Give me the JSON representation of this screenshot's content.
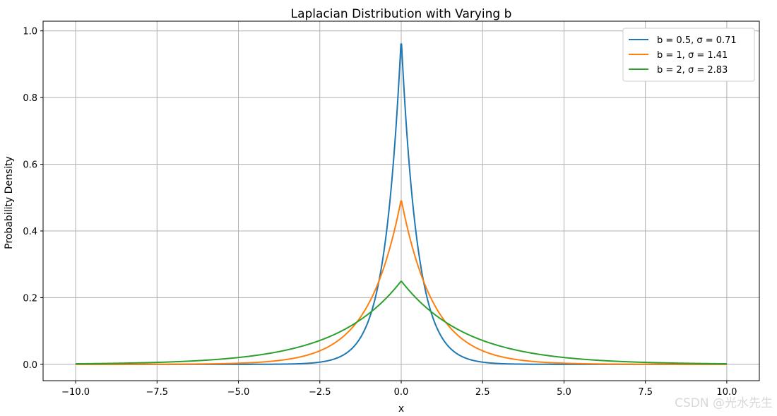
{
  "chart_data": {
    "type": "line",
    "title": "Laplacian Distribution with Varying b",
    "xlabel": "x",
    "ylabel": "Probability Density",
    "xlim": [
      -11.0,
      11.0
    ],
    "ylim": [
      -0.049,
      1.029
    ],
    "xticks": [
      -10.0,
      -7.5,
      -5.0,
      -2.5,
      0.0,
      2.5,
      5.0,
      7.5,
      10.0
    ],
    "xtick_labels": [
      "−10.0",
      "−7.5",
      "−5.0",
      "−2.5",
      "0.0",
      "2.5",
      "5.0",
      "7.5",
      "10.0"
    ],
    "yticks": [
      0.0,
      0.2,
      0.4,
      0.6,
      0.8,
      1.0
    ],
    "ytick_labels": [
      "0.0",
      "0.2",
      "0.4",
      "0.6",
      "0.8",
      "1.0"
    ],
    "grid": true,
    "legend_position": "top-right",
    "x_range": [
      -10.0,
      10.0
    ],
    "peak_x": 0.0,
    "series": [
      {
        "name": "b = 0.5, σ = 0.71",
        "b": 0.5,
        "peak": 0.98,
        "color": "#1f77b4"
      },
      {
        "name": "b = 1, σ = 1.41",
        "b": 1.0,
        "peak": 0.495,
        "color": "#ff7f0e"
      },
      {
        "name": "b = 2, σ = 2.83",
        "b": 2.0,
        "peak": 0.25,
        "color": "#2ca02c"
      }
    ]
  },
  "watermark": "CSDN @光水先生"
}
